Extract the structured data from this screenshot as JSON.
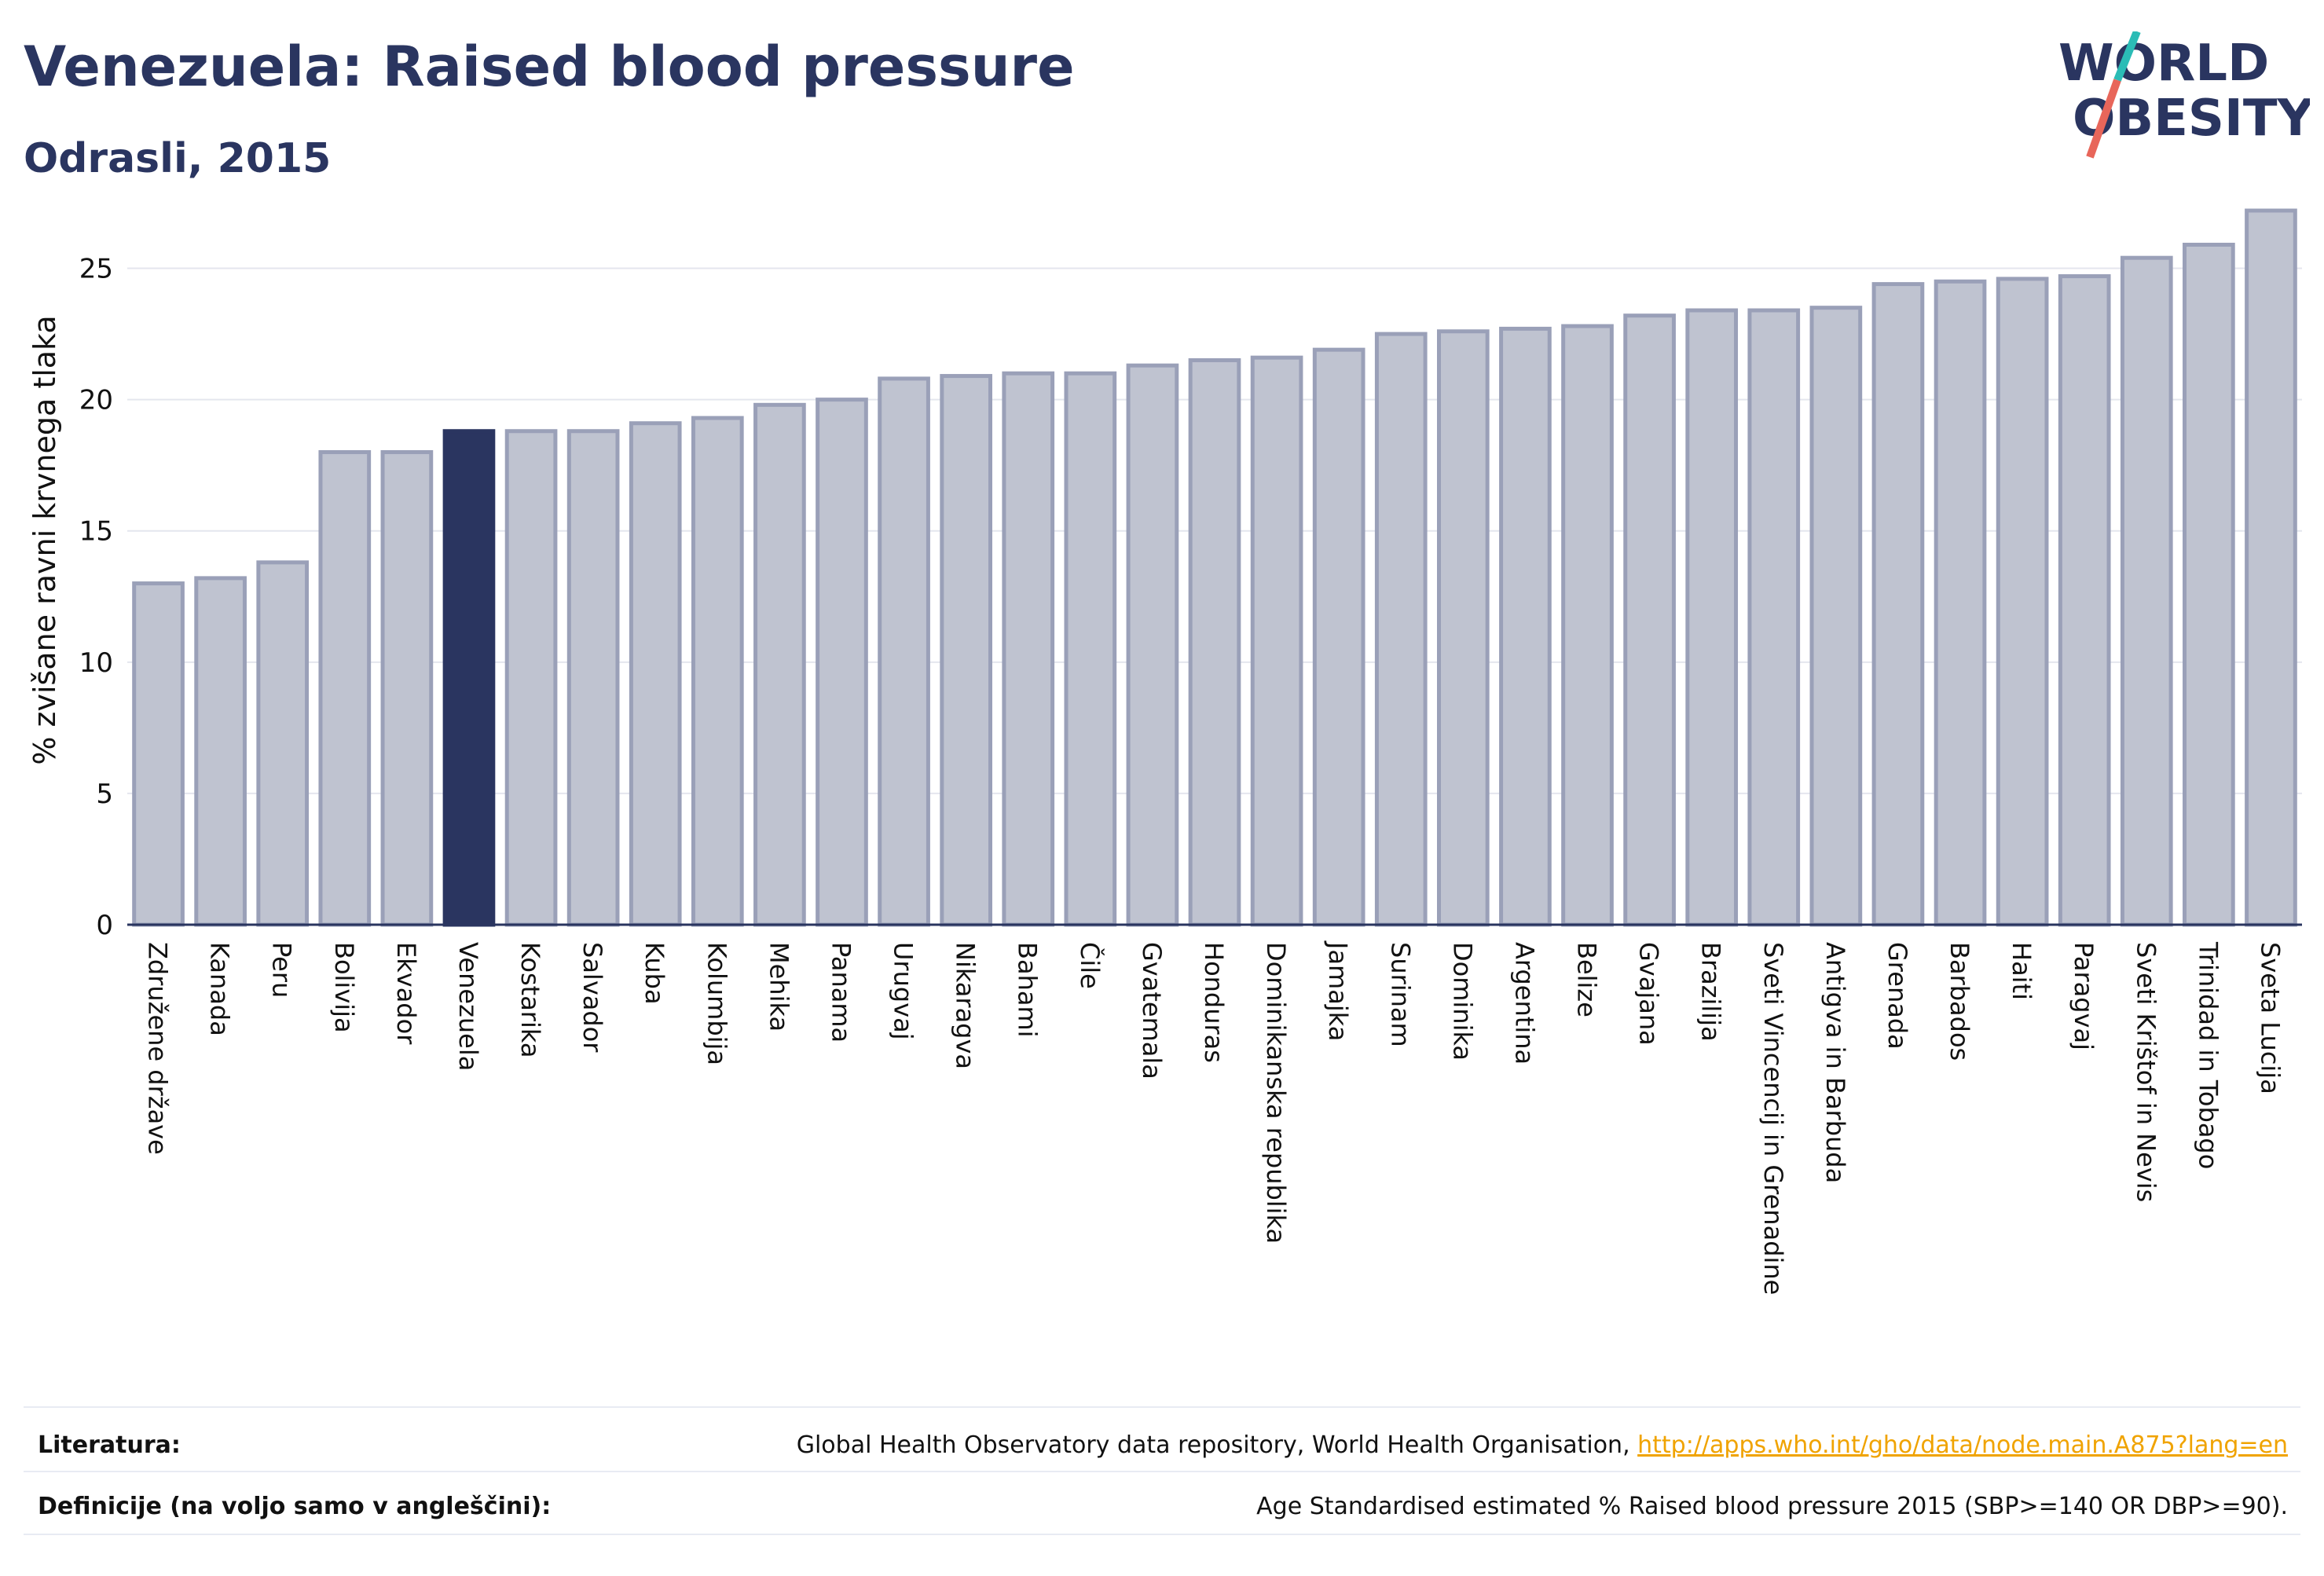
{
  "header": {
    "title": "Venezuela: Raised blood pressure",
    "subtitle": "Odrasli, 2015"
  },
  "logo": {
    "line1": "WORLD",
    "line2": "OBESITY"
  },
  "colors": {
    "bar": "#bfc3d0",
    "bar_stroke": "#9aa0b8",
    "highlight": "#2a3560",
    "grid": "#e4e6ee",
    "axis": "#2a3560",
    "link": "#f0a300",
    "logo_teal": "#2bbcb6",
    "logo_red": "#e8665a"
  },
  "chart_data": {
    "type": "bar",
    "title": "",
    "xlabel": "",
    "ylabel": "% zvišane ravni krvnega tlaka",
    "ylim": [
      0,
      27.5
    ],
    "yticks": [
      0,
      5,
      10,
      15,
      20,
      25
    ],
    "grid": true,
    "highlight": "Venezuela",
    "categories": [
      "Združene države",
      "Kanada",
      "Peru",
      "Bolivija",
      "Ekvador",
      "Venezuela",
      "Kostarika",
      "Salvador",
      "Kuba",
      "Kolumbija",
      "Mehika",
      "Panama",
      "Urugvaj",
      "Nikaragva",
      "Bahami",
      "Čile",
      "Gvatemala",
      "Honduras",
      "Dominikanska republika",
      "Jamajka",
      "Surinam",
      "Dominika",
      "Argentina",
      "Belize",
      "Gvajana",
      "Brazilija",
      "Sveti Vincencij in Grenadine",
      "Antigva in Barbuda",
      "Grenada",
      "Barbados",
      "Haiti",
      "Paragvaj",
      "Sveti Krištof in Nevis",
      "Trinidad in Tobago",
      "Sveta Lucija"
    ],
    "values": [
      13.0,
      13.2,
      13.8,
      18.0,
      18.0,
      18.8,
      18.8,
      18.8,
      19.1,
      19.3,
      19.8,
      20.0,
      20.8,
      20.9,
      21.0,
      21.0,
      21.3,
      21.5,
      21.6,
      21.9,
      22.5,
      22.6,
      22.7,
      22.8,
      23.2,
      23.4,
      23.4,
      23.5,
      24.4,
      24.5,
      24.6,
      24.7,
      25.4,
      25.9,
      27.2
    ]
  },
  "footer": {
    "references_label": "Literatura:",
    "references_text": "Global Health Observatory data repository, World Health Organisation, ",
    "references_link": "http://apps.who.int/gho/data/node.main.A875?lang=en",
    "definitions_label": "Definicije (na voljo samo v angleščini):",
    "definitions_text": "Age Standardised estimated % Raised blood pressure 2015 (SBP>=140 OR DBP>=90)."
  }
}
